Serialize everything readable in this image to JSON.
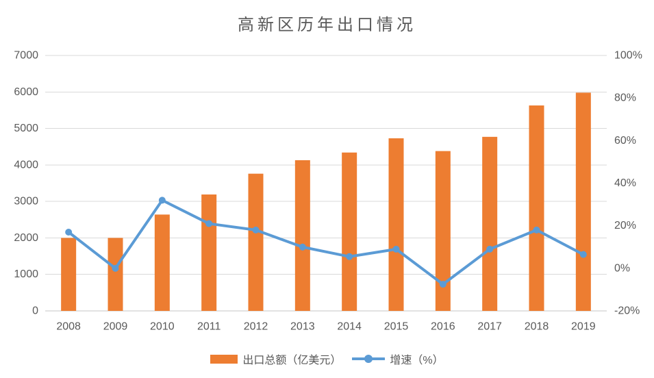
{
  "chart_data": {
    "type": "bar",
    "subtype": "combo-bar-line-dual-axis",
    "title": "高新区历年出口情况",
    "categories": [
      "2008",
      "2009",
      "2010",
      "2011",
      "2012",
      "2013",
      "2014",
      "2015",
      "2016",
      "2017",
      "2018",
      "2019"
    ],
    "series": [
      {
        "name": "出口总额（亿美元）",
        "type": "bar",
        "axis": "left",
        "color": "#ED7D31",
        "values": [
          2000,
          2000,
          2640,
          3190,
          3760,
          4130,
          4340,
          4730,
          4380,
          4770,
          5630,
          5980
        ]
      },
      {
        "name": "增速（%）",
        "type": "line",
        "axis": "right",
        "color": "#5B9BD5",
        "values": [
          17,
          0,
          32,
          21,
          18,
          10,
          5.5,
          9,
          -7.5,
          9,
          18,
          6.5
        ]
      }
    ],
    "left_axis": {
      "min": 0,
      "max": 7000,
      "step": 1000,
      "ticks": [
        "0",
        "1000",
        "2000",
        "3000",
        "4000",
        "5000",
        "6000",
        "7000"
      ]
    },
    "right_axis": {
      "min": -20,
      "max": 100,
      "step": 20,
      "ticks": [
        "-20%",
        "0%",
        "20%",
        "40%",
        "60%",
        "80%",
        "100%"
      ]
    },
    "grid": true,
    "legend_position": "bottom"
  },
  "style": {
    "bar_color": "#ED7D31",
    "line_color": "#5B9BD5",
    "grid_color": "#D9D9D9",
    "axis_line_color": "#C6C6C6",
    "text_color": "#595959",
    "background": "#FFFFFF"
  }
}
